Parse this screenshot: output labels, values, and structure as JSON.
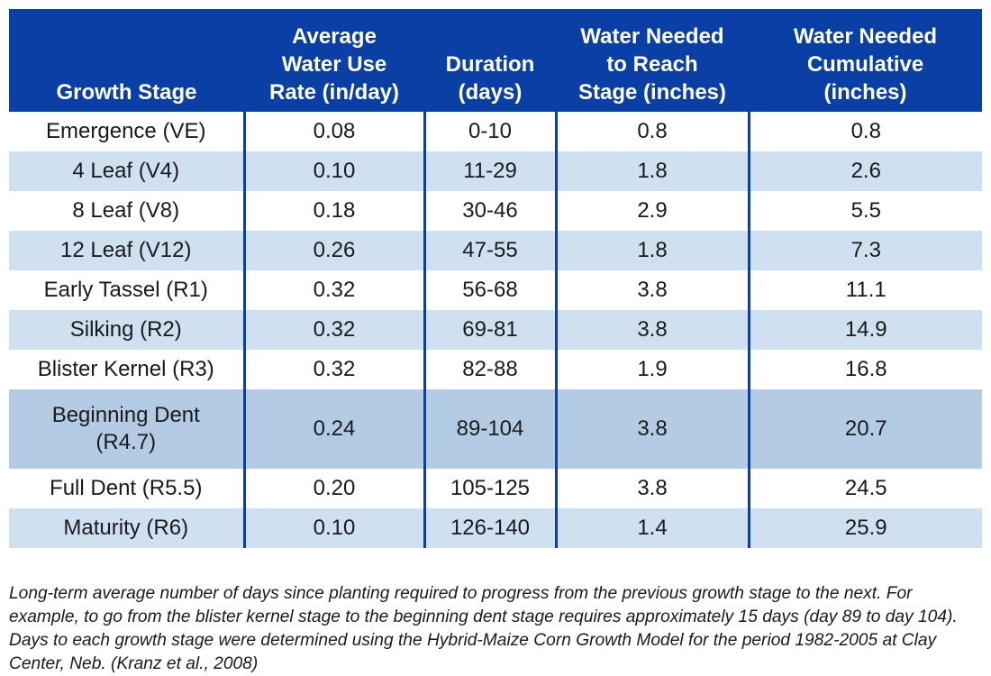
{
  "table": {
    "headers": [
      "Growth Stage",
      "Average\nWater Use\nRate (in/day)",
      "Duration\n(days)",
      "Water Needed\nto Reach\nStage (inches)",
      "Water Needed\nCumulative\n(inches)"
    ],
    "rows": [
      [
        "Emergence (VE)",
        "0.08",
        "0-10",
        "0.8",
        "0.8"
      ],
      [
        "4 Leaf (V4)",
        "0.10",
        "11-29",
        "1.8",
        "2.6"
      ],
      [
        "8 Leaf (V8)",
        "0.18",
        "30-46",
        "2.9",
        "5.5"
      ],
      [
        "12 Leaf (V12)",
        "0.26",
        "47-55",
        "1.8",
        "7.3"
      ],
      [
        "Early Tassel (R1)",
        "0.32",
        "56-68",
        "3.8",
        "11.1"
      ],
      [
        "Silking (R2)",
        "0.32",
        "69-81",
        "3.8",
        "14.9"
      ],
      [
        "Blister Kernel (R3)",
        "0.32",
        "82-88",
        "1.9",
        "16.8"
      ],
      [
        "Beginning Dent\n(R4.7)",
        "0.24",
        "89-104",
        "3.8",
        "20.7"
      ],
      [
        "Full Dent (R5.5)",
        "0.20",
        "105-125",
        "3.8",
        "24.5"
      ],
      [
        "Maturity (R6)",
        "0.10",
        "126-140",
        "1.4",
        "25.9"
      ]
    ]
  },
  "footnote": "Long-term average number of days since planting required to progress from the previous growth stage to the next. For example, to go from the blister kernel stage to the beginning dent stage requires approximately 15 days (day 89 to day 104). Days to each growth stage were determined using the Hybrid-Maize Corn Growth Model for the period 1982-2005 at Clay Center, Neb. (Kranz et al., 2008)",
  "colors": {
    "header_bg": "#0a3fa5",
    "row_shade": "#cfe0f0",
    "row_shade_highlight": "#b4cce3",
    "separator": "#0a3fa5"
  }
}
